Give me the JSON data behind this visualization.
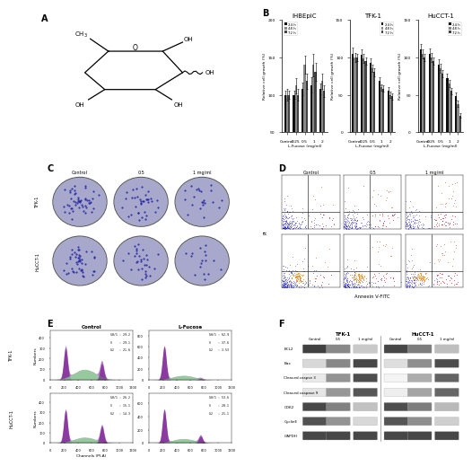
{
  "panel_B": {
    "iHBEpiC": {
      "categories": [
        "Control",
        "0.25",
        "0.5",
        "1",
        "2"
      ],
      "series": {
        "24h": [
          100,
          100,
          108,
          113,
          108
        ],
        "48h": [
          100,
          112,
          140,
          140,
          118
        ],
        "72h": [
          100,
          100,
          118,
          130,
          105
        ]
      },
      "errors": {
        "24h": [
          5,
          5,
          8,
          10,
          7
        ],
        "48h": [
          8,
          10,
          12,
          15,
          10
        ],
        "72h": [
          5,
          8,
          10,
          12,
          8
        ]
      },
      "ylim": [
        50,
        200
      ],
      "yticks": [
        50,
        100,
        150,
        200
      ],
      "title": "iHBEpiC"
    },
    "TFK1": {
      "categories": [
        "Control",
        "0.25",
        "0.5",
        "1",
        "2"
      ],
      "series": {
        "24h": [
          105,
          103,
          92,
          68,
          55
        ],
        "48h": [
          100,
          98,
          85,
          60,
          50
        ],
        "72h": [
          100,
          95,
          80,
          58,
          48
        ]
      },
      "errors": {
        "24h": [
          8,
          7,
          6,
          5,
          5
        ],
        "48h": [
          6,
          6,
          5,
          4,
          4
        ],
        "72h": [
          5,
          5,
          5,
          4,
          4
        ]
      },
      "ylim": [
        0,
        150
      ],
      "yticks": [
        0,
        50,
        100,
        150
      ],
      "title": "TFK-1"
    },
    "HuCCT1": {
      "categories": [
        "Control",
        "0.25",
        "0.5",
        "1",
        "2"
      ],
      "series": {
        "24h": [
          110,
          105,
          90,
          72,
          48
        ],
        "48h": [
          105,
          100,
          85,
          65,
          38
        ],
        "72h": [
          100,
          95,
          78,
          55,
          22
        ]
      },
      "errors": {
        "24h": [
          8,
          7,
          7,
          6,
          5
        ],
        "48h": [
          6,
          6,
          6,
          5,
          4
        ],
        "72h": [
          5,
          5,
          5,
          4,
          3
        ]
      },
      "ylim": [
        0,
        150
      ],
      "yticks": [
        0,
        50,
        100,
        150
      ],
      "title": "HuCCT-1"
    }
  },
  "bar_colors": {
    "24h": "#111111",
    "48h": "#888888",
    "72h": "#444444"
  },
  "panel_E_labels": {
    "TFK1_control": [
      "G0/1 : 29.2",
      "S    : 29.1",
      "G2   : 21.6"
    ],
    "TFK1_lfucose": [
      "G0/1 : 62.9",
      "S    : 37.6",
      "G2   : 3.53"
    ],
    "HuCCT1_control": [
      "G0/1 : 26.2",
      "S    : 15.1",
      "G2   : 14.3"
    ],
    "HuCCT1_lfucose": [
      "G0/1 : 53.6",
      "S    : 28.1",
      "G2   : 21.1"
    ]
  },
  "panel_F_labels": [
    "BCL2",
    "Bax",
    "Cleaved caspse 3",
    "Cleaved caspase 9",
    "CDK2",
    "CyclinE",
    "GAPDH"
  ],
  "background_color": "#ffffff",
  "c_col_labels": [
    "Control",
    "0.5",
    "1 mg/ml"
  ],
  "c_row_labels": [
    "TFK-1",
    "HuCCT-1"
  ],
  "d_col_labels": [
    "Control",
    "0.5",
    "1 mg/ml"
  ],
  "e_col_titles": [
    "Control",
    "L-Fucose"
  ],
  "e_row_labels": [
    "TFK-1",
    "HuCCT-1"
  ],
  "ylabel_B": "Relative cell growth (%)",
  "xlabel_B": "L-Fucose (mg/ml)",
  "legend_labels": [
    "24 h",
    "48 h",
    "72 h"
  ],
  "annexin_xlabel": "Annexin V-FITC",
  "pi_ylabel": "PI",
  "channels_xlabel": "Channels (PI-A)",
  "numbers_ylabel": "Numbers",
  "tfk1_header": "TFK-1",
  "hucct1_header": "HuCCT-1",
  "wb_sub_headers": [
    "Control",
    "0.5",
    "1 mg/ml"
  ]
}
